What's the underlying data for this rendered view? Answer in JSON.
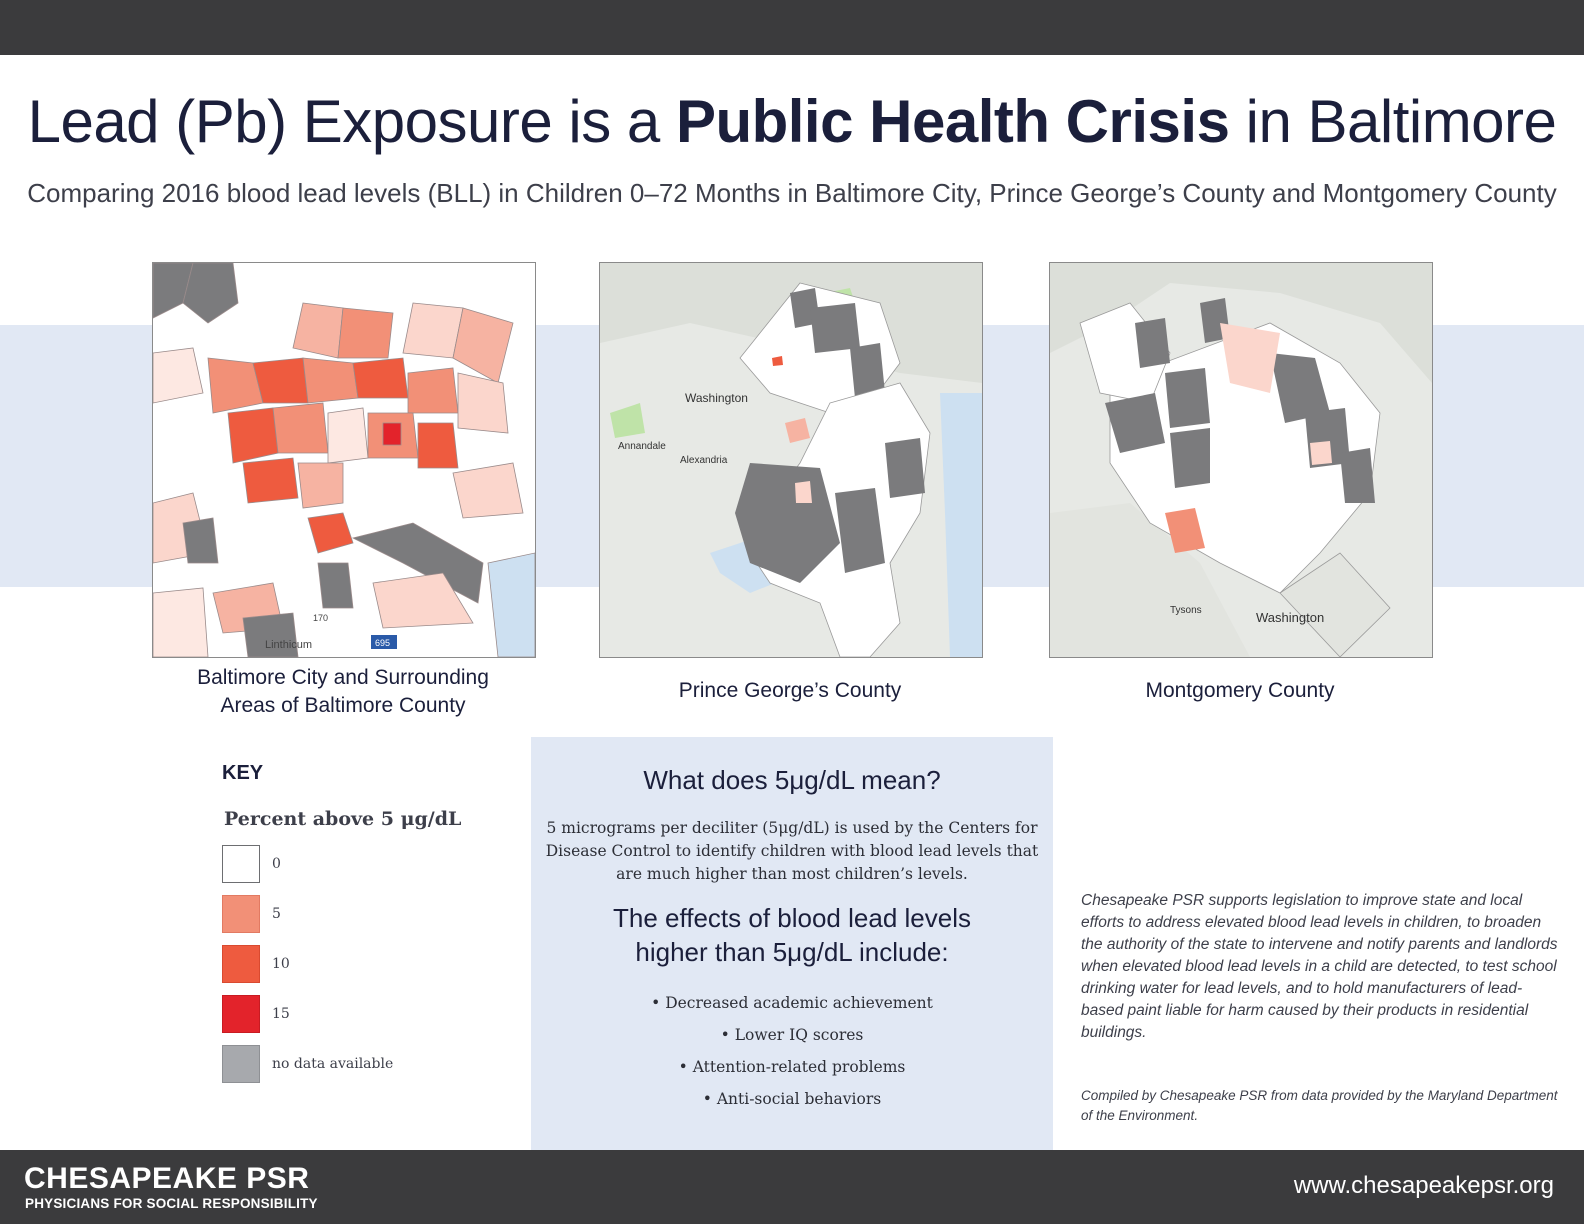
{
  "title": {
    "before": "Lead (Pb) Exposure is a ",
    "emphasis": "Public Health Crisis",
    "after": " in Baltimore"
  },
  "subtitle": "Comparing 2016 blood lead levels (BLL) in Children 0–72 Months in Baltimore City, Prince George’s County and Montgomery County",
  "maps": {
    "baltimore": {
      "caption_line1": "Baltimore City and Surrounding",
      "caption_line2": "Areas of Baltimore County",
      "place_labels": {
        "linthicum": "Linthicum",
        "route_170": "170",
        "route_695": "695"
      }
    },
    "prince_georges": {
      "caption": "Prince George’s County",
      "place_labels": {
        "washington": "Washington",
        "annandale": "Annandale",
        "alexandria": "Alexandria"
      }
    },
    "montgomery": {
      "caption": "Montgomery County",
      "place_labels": {
        "washington": "Washington",
        "tysons": "Tysons"
      }
    }
  },
  "key": {
    "heading": "KEY",
    "subheading": "Percent above 5 μg/dL",
    "items": [
      {
        "label": "0",
        "color": "#ffffff"
      },
      {
        "label": "5",
        "color": "#f29077"
      },
      {
        "label": "10",
        "color": "#ee5b3f"
      },
      {
        "label": "15",
        "color": "#e3232b"
      },
      {
        "label": "no data available",
        "color": "#a7a9ad"
      }
    ]
  },
  "info": {
    "question": "What does 5μg/dL mean?",
    "definition": "5 micrograms per deciliter (5μg/dL) is used by the Centers for Disease Control to identify children with blood lead levels that are much higher than most children’s levels.",
    "effects_line1": "The effects of blood lead levels",
    "effects_line2": "higher than 5μg/dL include:",
    "effects": [
      "• Decreased academic achievement",
      "• Lower IQ scores",
      "• Attention-related problems",
      "• Anti-social behaviors"
    ]
  },
  "advocacy": "Chesapeake PSR supports legislation to improve state and local efforts to address elevated blood lead levels in children, to broaden the authority of the state to intervene and notify parents and landlords when elevated blood lead levels in a child are detected, to test school drinking water for lead levels, and to hold manufacturers of lead-based paint liable for harm caused by their products in residential buildings.",
  "compiled": "Compiled by Chesapeake PSR from data provided by the Maryland Department of the Environment.",
  "footer": {
    "org_name": "CHESAPEAKE PSR",
    "tagline": "PHYSICIANS FOR SOCIAL RESPONSIBILITY",
    "url": "www.chesapeakepsr.org"
  },
  "colors": {
    "navy": "#1b1f3b",
    "band": "#e1e8f4",
    "dark_bar": "#3b3b3d",
    "no_data": "#7b7b7d"
  }
}
